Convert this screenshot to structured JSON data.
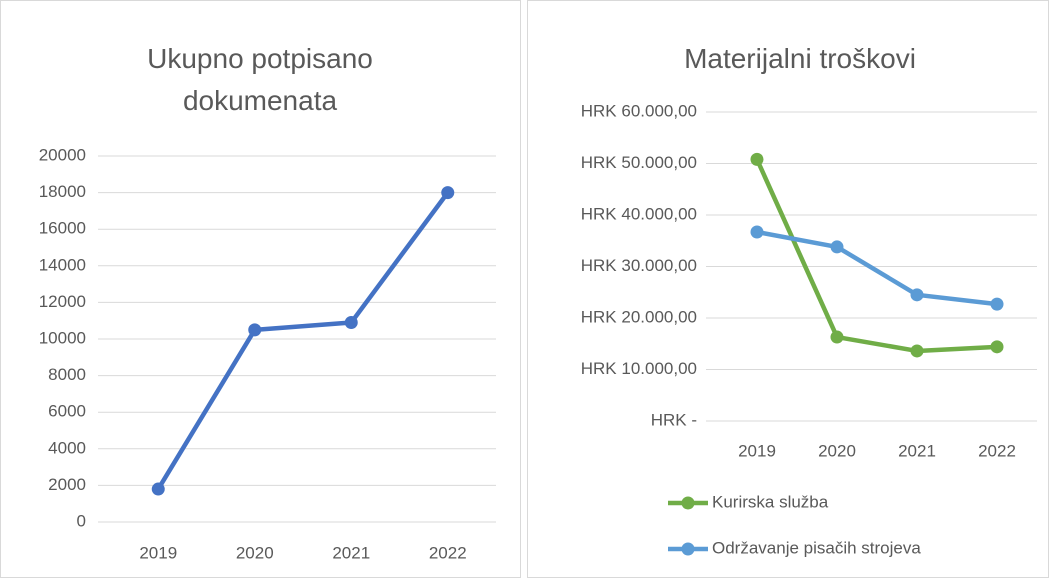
{
  "chart_data": [
    {
      "type": "line",
      "title": "Ukupno potpisano dokumenata",
      "categories": [
        "2019",
        "2020",
        "2021",
        "2022"
      ],
      "series": [
        {
          "name": "Ukupno potpisano dokumenata",
          "color": "#4472c4",
          "values": [
            1800,
            10500,
            10900,
            18000
          ]
        }
      ],
      "ylim": [
        0,
        20000
      ],
      "yticks": [
        0,
        2000,
        4000,
        6000,
        8000,
        10000,
        12000,
        14000,
        16000,
        18000,
        20000
      ],
      "grid": true,
      "legend": null
    },
    {
      "type": "line",
      "title": "Materijalni troškovi",
      "categories": [
        "2019",
        "2020",
        "2021",
        "2022"
      ],
      "series": [
        {
          "name": "Kurirska služba",
          "color": "#70ad47",
          "values": [
            50800,
            16300,
            13600,
            14400
          ]
        },
        {
          "name": "Održavanje pisačih strojeva",
          "color": "#5b9bd5",
          "values": [
            36700,
            33800,
            24500,
            22700
          ]
        }
      ],
      "ylim": [
        0,
        60000
      ],
      "yticks": [
        {
          "value": 0,
          "label": "HRK -"
        },
        {
          "value": 10000,
          "label": "HRK 10.000,00"
        },
        {
          "value": 20000,
          "label": "HRK 20.000,00"
        },
        {
          "value": 30000,
          "label": "HRK 30.000,00"
        },
        {
          "value": 40000,
          "label": "HRK 40.000,00"
        },
        {
          "value": 50000,
          "label": "HRK 50.000,00"
        },
        {
          "value": 60000,
          "label": "HRK 60.000,00"
        }
      ],
      "grid": true,
      "legend": "bottom"
    }
  ]
}
